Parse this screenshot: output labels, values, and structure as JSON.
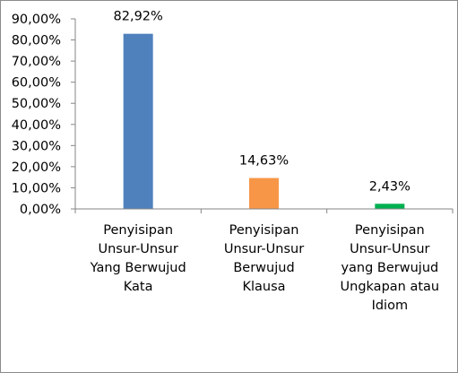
{
  "chart_data": {
    "type": "bar",
    "categories": [
      "Penyisipan\nUnsur-Unsur\nYang Berwujud\nKata",
      "Penyisipan\nUnsur-Unsur\nBerwujud\nKlausa",
      "Penyisipan\nUnsur-Unsur\nyang Berwujud\nUngkapan atau\nIdiom"
    ],
    "values": [
      82.92,
      14.63,
      2.43
    ],
    "data_labels": [
      "82,92%",
      "14,63%",
      "2,43%"
    ],
    "colors": [
      "#4f81bd",
      "#f79646",
      "#00b050"
    ],
    "ylim": [
      0,
      90
    ],
    "yticks": [
      "0,00%",
      "10,00%",
      "20,00%",
      "30,00%",
      "40,00%",
      "50,00%",
      "60,00%",
      "70,00%",
      "80,00%",
      "90,00%"
    ],
    "title": "",
    "xlabel": "",
    "ylabel": "",
    "legend": "none",
    "grid": false
  }
}
